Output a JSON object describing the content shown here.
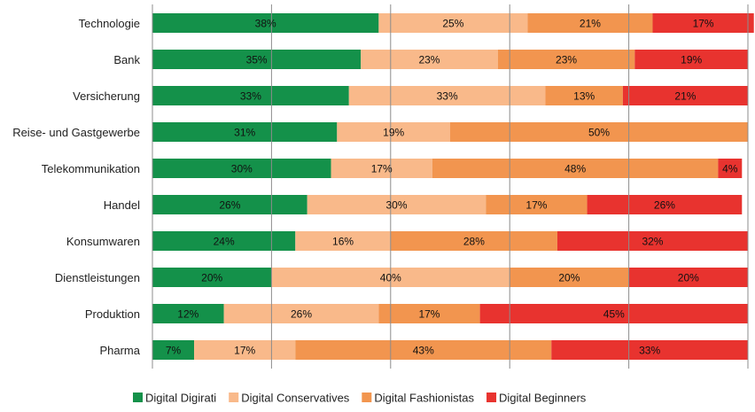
{
  "chart_data": {
    "type": "bar",
    "orientation": "horizontal",
    "stacked": "percent",
    "categories": [
      "Technologie",
      "Bank",
      "Versicherung",
      "Reise- und Gastgewerbe",
      "Telekommunikation",
      "Handel",
      "Konsumwaren",
      "Dienstleistungen",
      "Produktion",
      "Pharma"
    ],
    "series": [
      {
        "name": "Digital Digirati",
        "color": "#14914a",
        "values": [
          38,
          35,
          33,
          31,
          30,
          26,
          24,
          20,
          12,
          7
        ]
      },
      {
        "name": "Digital Conservatives",
        "color": "#f9b98a",
        "values": [
          25,
          23,
          33,
          19,
          17,
          30,
          16,
          40,
          26,
          17
        ]
      },
      {
        "name": "Digital Fashionistas",
        "color": "#f2954f",
        "values": [
          21,
          23,
          13,
          50,
          48,
          17,
          28,
          20,
          17,
          43
        ]
      },
      {
        "name": "Digital Beginners",
        "color": "#e8332f",
        "values": [
          17,
          19,
          21,
          null,
          4,
          26,
          32,
          20,
          45,
          33
        ]
      }
    ],
    "data_labels": true,
    "label_suffix": "%",
    "xlim": [
      0,
      100
    ],
    "grid": true,
    "legend_position": "bottom"
  }
}
